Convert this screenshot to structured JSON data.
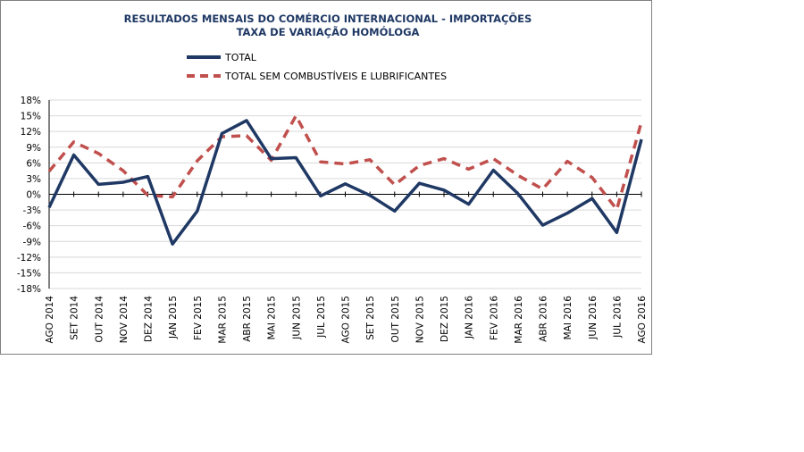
{
  "chart_data": {
    "type": "line",
    "title": "RESULTADOS MENSAIS DO COMÉRCIO INTERNACIONAL  - IMPORTAÇÕES",
    "subtitle": "TAXA DE VARIAÇÃO HOMÓLOGA",
    "categories": [
      "AGO 2014",
      "SET 2014",
      "OUT 2014",
      "NOV 2014",
      "DEZ 2014",
      "JAN 2015",
      "FEV 2015",
      "MAR 2015",
      "ABR 2015",
      "MAI 2015",
      "JUN 2015",
      "JUL 2015",
      "AGO 2015",
      "SET 2015",
      "OUT 2015",
      "NOV 2015",
      "DEZ 2015",
      "JAN 2016",
      "FEV 2016",
      "MAR 2016",
      "ABR 2016",
      "MAI 2016",
      "JUN 2016",
      "JUL 2016",
      "AGO 2016"
    ],
    "series": [
      {
        "name": "TOTAL",
        "color": "#1f3864",
        "style": "solid",
        "values": [
          -2.5,
          7.5,
          1.9,
          2.3,
          3.4,
          -9.5,
          -3.2,
          11.6,
          14.1,
          6.8,
          7.0,
          -0.3,
          2.0,
          -0.2,
          -3.2,
          2.1,
          0.8,
          -1.9,
          4.6,
          0.1,
          -5.9,
          -3.6,
          -0.8,
          -7.3,
          10.5
        ]
      },
      {
        "name": "TOTAL SEM COMBUSTÍVEIS E LUBRIFICANTES",
        "color": "#c0504d",
        "style": "dashed",
        "values": [
          4.4,
          10.0,
          7.8,
          4.5,
          -0.2,
          -0.5,
          6.4,
          11.0,
          11.2,
          6.5,
          15.0,
          6.2,
          5.8,
          6.6,
          1.8,
          5.5,
          6.8,
          4.8,
          6.8,
          3.6,
          1.0,
          6.3,
          3.2,
          -2.9,
          13.8
        ]
      }
    ],
    "ylim": [
      -18,
      18
    ],
    "yticks": [
      "18%",
      "15%",
      "12%",
      "9%",
      "6%",
      "3%",
      "0%",
      "-3%",
      "-6%",
      "-9%",
      "-12%",
      "-15%",
      "-18%"
    ],
    "grid": true,
    "legend": "top"
  }
}
